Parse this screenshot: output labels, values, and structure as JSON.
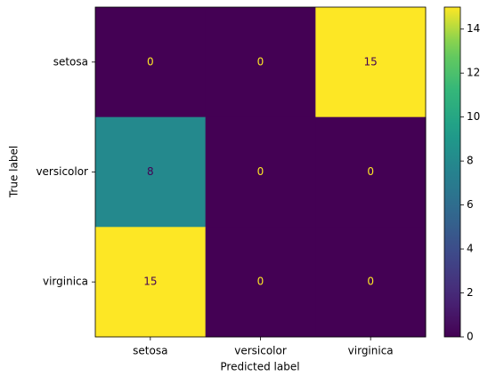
{
  "chart_data": {
    "type": "heatmap",
    "x_label": "Predicted label",
    "y_label": "True label",
    "x_categories": [
      "setosa",
      "versicolor",
      "virginica"
    ],
    "y_categories": [
      "setosa",
      "versicolor",
      "virginica"
    ],
    "values": [
      [
        0,
        0,
        15
      ],
      [
        8,
        0,
        0
      ],
      [
        15,
        0,
        0
      ]
    ],
    "colormap": "viridis",
    "colorbar_lim": [
      0,
      15
    ],
    "colorbar_ticks": [
      0,
      2,
      4,
      6,
      8,
      10,
      12,
      14
    ]
  }
}
